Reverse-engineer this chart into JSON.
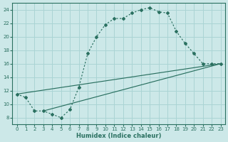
{
  "xlabel": "Humidex (Indice chaleur)",
  "bg_color": "#cce8e8",
  "grid_color": "#aad4d4",
  "line_color": "#2a7060",
  "xlim": [
    -0.5,
    23.5
  ],
  "ylim": [
    7.0,
    25.0
  ],
  "xticks": [
    0,
    1,
    2,
    3,
    4,
    5,
    6,
    7,
    8,
    9,
    10,
    11,
    12,
    13,
    14,
    15,
    16,
    17,
    18,
    19,
    20,
    21,
    22,
    23
  ],
  "yticks": [
    8,
    10,
    12,
    14,
    16,
    18,
    20,
    22,
    24
  ],
  "main_x": [
    0,
    1,
    2,
    3,
    4,
    5,
    6,
    7,
    8,
    9,
    10,
    11,
    12,
    13,
    14,
    15,
    16,
    17,
    18,
    19,
    20,
    21,
    22,
    23
  ],
  "main_y": [
    11.5,
    11.0,
    9.0,
    9.0,
    8.5,
    8.0,
    9.2,
    12.5,
    17.5,
    20.0,
    21.8,
    22.7,
    22.7,
    23.5,
    24.0,
    24.3,
    23.7,
    23.5,
    20.8,
    19.0,
    17.5,
    16.0,
    16.0,
    16.0
  ],
  "line1_x": [
    0,
    23
  ],
  "line1_y": [
    11.5,
    16.0
  ],
  "line2_x": [
    3,
    23
  ],
  "line2_y": [
    9.0,
    16.0
  ]
}
